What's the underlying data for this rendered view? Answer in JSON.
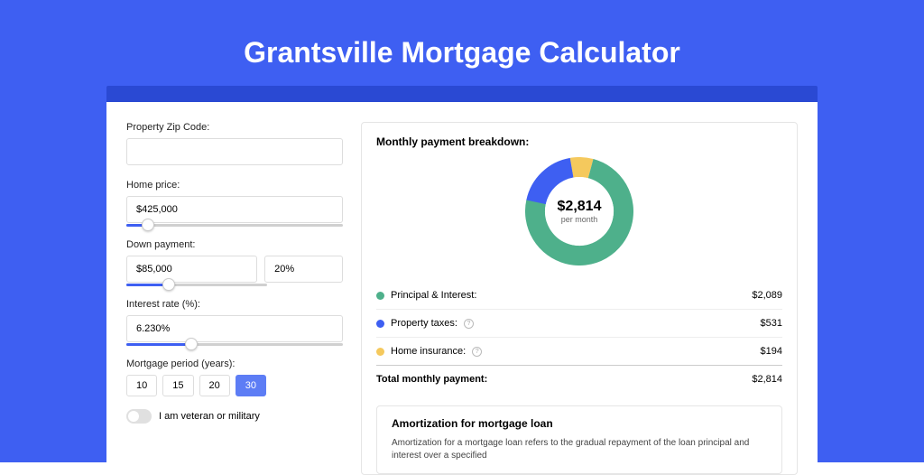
{
  "page": {
    "title": "Grantsville Mortgage Calculator",
    "bg_color": "#3e5ff2",
    "header_color": "#2a49d3",
    "card_bg": "#ffffff"
  },
  "form": {
    "zip": {
      "label": "Property Zip Code:",
      "value": ""
    },
    "home_price": {
      "label": "Home price:",
      "value": "$425,000",
      "slider_percent": 10
    },
    "down_payment": {
      "label": "Down payment:",
      "amount": "$85,000",
      "percent": "20%",
      "slider_percent": 20
    },
    "interest_rate": {
      "label": "Interest rate (%):",
      "value": "6.230%",
      "slider_percent": 30
    },
    "mortgage_period": {
      "label": "Mortgage period (years):",
      "options": [
        "10",
        "15",
        "20",
        "30"
      ],
      "selected": "30"
    },
    "veteran": {
      "label": "I am veteran or military",
      "checked": false
    }
  },
  "breakdown": {
    "title": "Monthly payment breakdown:",
    "center_amount": "$2,814",
    "center_sub": "per month",
    "items": [
      {
        "label": "Principal & Interest:",
        "amount": "$2,089",
        "color": "#4eb08b",
        "has_help": false,
        "degrees": 267
      },
      {
        "label": "Property taxes:",
        "amount": "$531",
        "color": "#3e5ff2",
        "has_help": true,
        "degrees": 68
      },
      {
        "label": "Home insurance:",
        "amount": "$194",
        "color": "#f5c95d",
        "has_help": true,
        "degrees": 25
      }
    ],
    "total": {
      "label": "Total monthly payment:",
      "amount": "$2,814"
    },
    "donut": {
      "size": 120,
      "thickness": 22,
      "track_color": "#f0f0f0"
    }
  },
  "amortization": {
    "title": "Amortization for mortgage loan",
    "text": "Amortization for a mortgage loan refers to the gradual repayment of the loan principal and interest over a specified"
  }
}
